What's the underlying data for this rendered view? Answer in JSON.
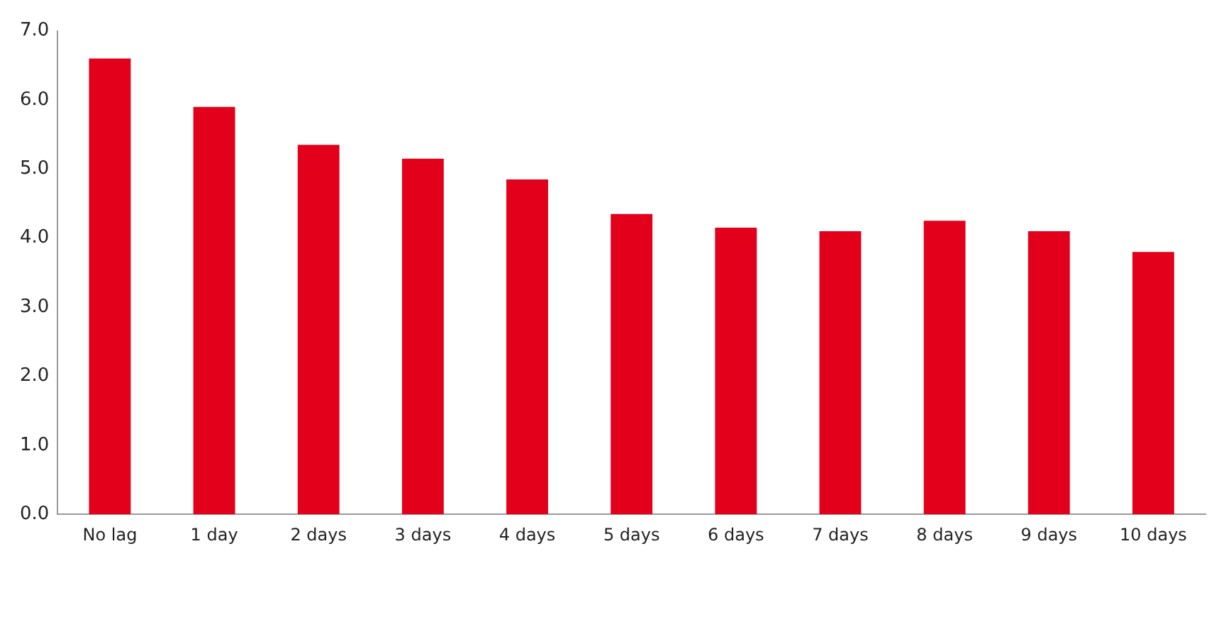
{
  "chart_data": {
    "type": "bar",
    "categories": [
      "No lag",
      "1 day",
      "2 days",
      "3 days",
      "4 days",
      "5 days",
      "6 days",
      "7 days",
      "8 days",
      "9 days",
      "10 days"
    ],
    "values": [
      6.6,
      5.9,
      5.35,
      5.15,
      4.85,
      4.35,
      4.15,
      4.1,
      4.25,
      4.1,
      3.8
    ],
    "color": "#e3001b",
    "ylim": [
      0,
      7
    ],
    "yticks": [
      {
        "value": 0,
        "label": "0.0"
      },
      {
        "value": 1,
        "label": "1.0"
      },
      {
        "value": 2,
        "label": "2.0"
      },
      {
        "value": 3,
        "label": "3.0"
      },
      {
        "value": 4,
        "label": "4.0"
      },
      {
        "value": 5,
        "label": "5.0"
      },
      {
        "value": 6,
        "label": "6.0"
      },
      {
        "value": 7,
        "label": "7.0"
      }
    ],
    "grid": false,
    "legend": false
  }
}
